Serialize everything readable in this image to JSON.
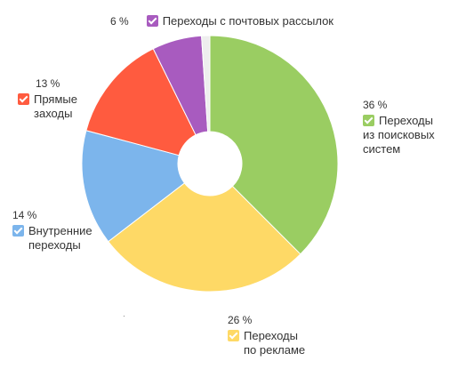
{
  "colors": {
    "search": "#9acd62",
    "ads": "#fed966",
    "internal": "#7cb5ec",
    "direct": "#ff5b3f",
    "email": "#a85bbf",
    "other": "#eeeeee",
    "text": "#333333",
    "background": "#ffffff"
  },
  "chart_data": {
    "type": "pie",
    "variant": "donut",
    "title": "",
    "series": [
      {
        "values": [
          {
            "category": "Переходы из поисковых систем",
            "value": 36,
            "label": "36 %",
            "color_key": "search",
            "lines": [
              "Переходы",
              "из поисковых",
              "систем"
            ],
            "legend_checked": true
          },
          {
            "category": "Переходы по рекламе",
            "value": 26,
            "label": "26 %",
            "color_key": "ads",
            "lines": [
              "Переходы",
              "по рекламе"
            ],
            "legend_checked": true
          },
          {
            "category": "Внутренние переходы",
            "value": 14,
            "label": "14 %",
            "color_key": "internal",
            "lines": [
              "Внутренние",
              "переходы"
            ],
            "legend_checked": true
          },
          {
            "category": "Прямые заходы",
            "value": 13,
            "label": "13 %",
            "color_key": "direct",
            "lines": [
              "Прямые",
              "заходы"
            ],
            "legend_checked": true
          },
          {
            "category": "Переходы с почтовых рассылок",
            "value": 6,
            "label": "6 %",
            "color_key": "email",
            "lines": [
              "Переходы с почтовых рассылок"
            ],
            "legend_checked": true
          },
          {
            "category": "",
            "value": 1,
            "label": "",
            "color_key": "other",
            "lines": [],
            "legend_checked": false
          }
        ]
      }
    ],
    "start_angle_deg": 0,
    "direction": "clockwise",
    "legend": "labels-around-slices"
  }
}
